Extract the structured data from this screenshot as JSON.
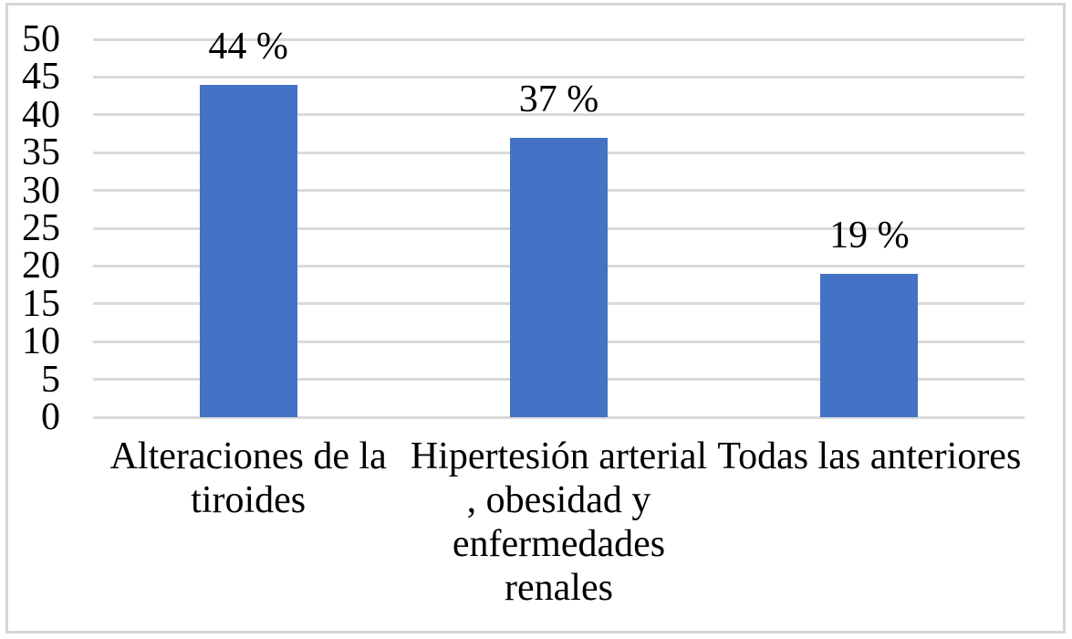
{
  "figure": {
    "background_color": "#FFFFFF",
    "frame_border_color": "#D6D6D6"
  },
  "chart_data": {
    "type": "bar",
    "title": "",
    "xlabel": "",
    "ylabel": "",
    "legend": "none",
    "grid": true,
    "gridline_color": "#D9D9D9",
    "axis_line_color": "#D9D9D9",
    "text_color": "#000000",
    "bar_color": "#4472C4",
    "ylim": [
      0,
      50
    ],
    "ytick_step": 5,
    "yticks": [
      0,
      5,
      10,
      15,
      20,
      25,
      30,
      35,
      40,
      45,
      50
    ],
    "categories": [
      "Alteraciones de la tiroides",
      "Hipertesión arterial , obesidad y enfermedades renales",
      "Todas las anteriores"
    ],
    "category_lines": [
      [
        "Alteraciones de la",
        "tiroides"
      ],
      [
        "Hipertesión arterial",
        ", obesidad y",
        "enfermedades",
        "renales"
      ],
      [
        "Todas las anteriores"
      ]
    ],
    "values": [
      44,
      37,
      19
    ],
    "data_labels": [
      "44 %",
      "37 %",
      "19 %"
    ]
  }
}
